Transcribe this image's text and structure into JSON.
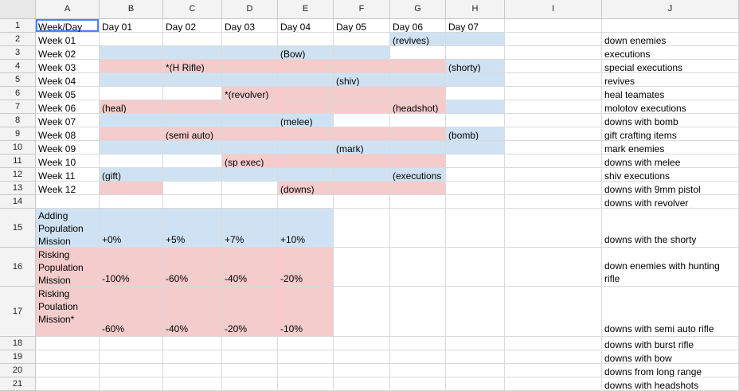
{
  "columns": [
    "A",
    "B",
    "C",
    "D",
    "E",
    "F",
    "G",
    "H",
    "I",
    "J"
  ],
  "rows": [
    "1",
    "2",
    "3",
    "4",
    "5",
    "6",
    "7",
    "8",
    "9",
    "10",
    "11",
    "12",
    "13",
    "14",
    "15",
    "16",
    "17",
    "18",
    "19",
    "20",
    "21"
  ],
  "header_row": [
    "Week/Day",
    "Day 01",
    "Day 02",
    "Day 03",
    "Day 04",
    "Day 05",
    "Day 06",
    "Day 07"
  ],
  "weeks": [
    {
      "label": "Week 01",
      "fill": "W",
      "marks": {
        "6": "(revives)"
      }
    },
    {
      "label": "Week 02",
      "fill": "B",
      "marks": {
        "4": "(Bow)"
      }
    },
    {
      "label": "Week 03",
      "fill": "P",
      "marks": {
        "2": "*(H Rifle)",
        "7": "(shorty)"
      }
    },
    {
      "label": "Week 04",
      "fill": "B",
      "marks": {
        "5": "(shiv)"
      }
    },
    {
      "label": "Week 05",
      "fill": "P",
      "marks": {
        "3": "*(revolver)"
      }
    },
    {
      "label": "Week 06",
      "fill": "P",
      "marks": {
        "1": "(heal)",
        "6": "(headshot)"
      }
    },
    {
      "label": "Week 07",
      "fill": "B",
      "marks": {
        "4": "(melee)"
      }
    },
    {
      "label": "Week 08",
      "fill": "P",
      "marks": {
        "2": "(semi auto)",
        "7": "(bomb)"
      }
    },
    {
      "label": "Week 09",
      "fill": "B",
      "marks": {
        "5": "(mark)"
      }
    },
    {
      "label": "Week 10",
      "fill": "P",
      "marks": {
        "3": "(sp exec)"
      }
    },
    {
      "label": "Week 11",
      "fill": "B",
      "marks": {
        "1": "(gift)",
        "6": "(executions"
      }
    },
    {
      "label": "Week 12",
      "fill": "P",
      "marks": {
        "4": "(downs)"
      }
    }
  ],
  "missions": [
    {
      "label": "Adding Population Mission",
      "values": [
        "+0%",
        "+5%",
        "+7%",
        "+10%"
      ],
      "color": "blue"
    },
    {
      "label": "Risking Population Mission",
      "values": [
        "-100%",
        "-60%",
        "-40%",
        "-20%"
      ],
      "color": "pink"
    },
    {
      "label": "Risking Poulation Mission*",
      "values": [
        "-60%",
        "-40%",
        "-20%",
        "-10%"
      ],
      "color": "pink"
    }
  ],
  "column_j": [
    "down enemies",
    "executions",
    "special executions",
    "revives",
    "heal teamates",
    "molotov executions",
    "downs with bomb",
    "gift crafting items",
    "mark enemies",
    "downs with melee",
    "shiv executions",
    "downs with 9mm pistol",
    "downs with revolver",
    "downs with the shorty",
    "down enemies with hunting rifle",
    "downs with semi auto rifle",
    "downs with burst rifle",
    "downs with bow",
    "downs from long range",
    "downs with headshots"
  ],
  "colors": {
    "blue": "#cfe2f3",
    "pink": "#f4cccc",
    "header": "#f3f3f3",
    "selection": "#4a86e8"
  }
}
